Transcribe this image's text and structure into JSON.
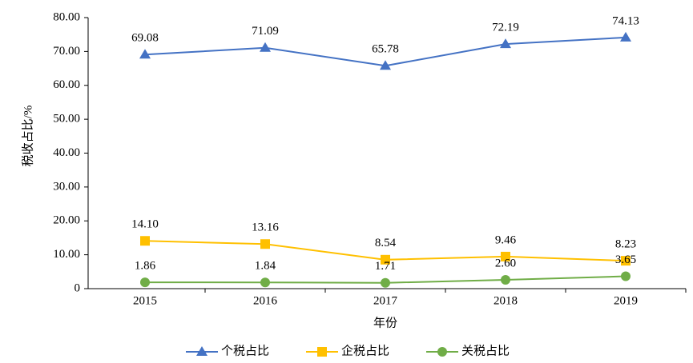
{
  "chart_data": {
    "type": "line",
    "xlabel": "年份",
    "ylabel": "税收占比/%",
    "categories": [
      "2015",
      "2016",
      "2017",
      "2018",
      "2019"
    ],
    "series": [
      {
        "name": "个税占比",
        "color": "#4472c4",
        "marker": "triangle",
        "values": [
          69.08,
          71.09,
          65.78,
          72.19,
          74.13
        ],
        "value_labels": [
          "69.08",
          "71.09",
          "65.78",
          "72.19",
          "74.13"
        ]
      },
      {
        "name": "企税占比",
        "color": "#ffc000",
        "marker": "square",
        "values": [
          14.1,
          13.16,
          8.54,
          9.46,
          8.23
        ],
        "value_labels": [
          "14.10",
          "13.16",
          "8.54",
          "9.46",
          "8.23"
        ]
      },
      {
        "name": "关税占比",
        "color": "#70ad47",
        "marker": "circle",
        "values": [
          1.86,
          1.84,
          1.71,
          2.6,
          3.65
        ],
        "value_labels": [
          "1.86",
          "1.84",
          "1.71",
          "2.60",
          "3.65"
        ]
      }
    ],
    "ylim": [
      0,
      80
    ],
    "yticks": [
      0,
      {
        "value": 10,
        "label": "10.00"
      },
      {
        "value": 20,
        "label": "20.00"
      },
      {
        "value": 30,
        "label": "30.00"
      },
      {
        "value": 40,
        "label": "40.00"
      },
      {
        "value": 50,
        "label": "50.00"
      },
      {
        "value": 60,
        "label": "60.00"
      },
      {
        "value": 70,
        "label": "70.00"
      },
      {
        "value": 80,
        "label": "80.00"
      }
    ],
    "legend": "bottom"
  }
}
